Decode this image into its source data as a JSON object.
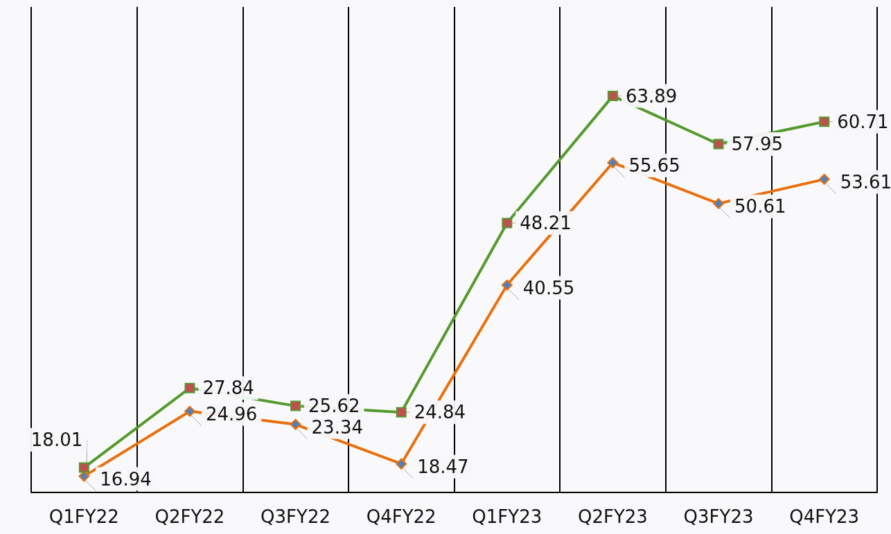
{
  "chart_data": {
    "type": "line",
    "categories": [
      "Q1FY22",
      "Q2FY22",
      "Q3FY22",
      "Q4FY22",
      "Q1FY23",
      "Q2FY23",
      "Q3FY23",
      "Q4FY23"
    ],
    "series": [
      {
        "color": "#559a2e",
        "marker": "square",
        "values": [
          18.01,
          27.84,
          25.62,
          24.84,
          48.21,
          63.89,
          57.95,
          60.71
        ]
      },
      {
        "color": "#e8700e",
        "marker": "diamond",
        "values": [
          16.94,
          24.96,
          23.34,
          18.47,
          40.55,
          55.65,
          50.61,
          53.61
        ]
      }
    ],
    "data_labels": true,
    "grid": "x",
    "tick_labels": "x"
  }
}
